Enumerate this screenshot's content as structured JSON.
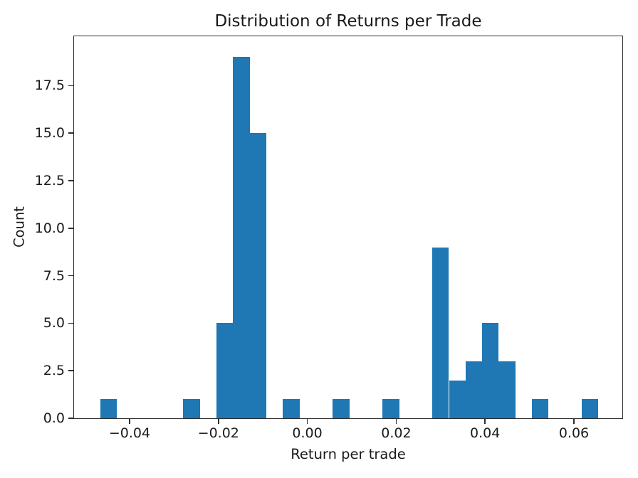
{
  "chart_data": {
    "type": "bar",
    "subtype": "histogram",
    "title": "Distribution of Returns per Trade",
    "xlabel": "Return per trade",
    "ylabel": "Count",
    "bar_color": "#1f77b4",
    "bins": 30,
    "bin_start": -0.0466,
    "bin_width": 0.003737,
    "bin_counts": [
      1,
      0,
      0,
      0,
      0,
      1,
      0,
      5,
      19,
      15,
      0,
      1,
      0,
      0,
      1,
      0,
      0,
      1,
      0,
      0,
      9,
      2,
      3,
      5,
      3,
      0,
      1,
      0,
      0,
      1
    ],
    "xlim": [
      -0.0525,
      0.0709
    ],
    "ylim": [
      0,
      20.1
    ],
    "grid": false,
    "legend_position": "none",
    "x_ticks": [
      {
        "value": -0.04,
        "label": "−0.04"
      },
      {
        "value": -0.02,
        "label": "−0.02"
      },
      {
        "value": 0,
        "label": "0.00"
      },
      {
        "value": 0.02,
        "label": "0.02"
      },
      {
        "value": 0.04,
        "label": "0.04"
      },
      {
        "value": 0.06,
        "label": "0.06"
      }
    ],
    "y_ticks": [
      {
        "value": 0,
        "label": "0.0"
      },
      {
        "value": 2.5,
        "label": "2.5"
      },
      {
        "value": 5,
        "label": "5.0"
      },
      {
        "value": 7.5,
        "label": "7.5"
      },
      {
        "value": 10,
        "label": "10.0"
      },
      {
        "value": 12.5,
        "label": "12.5"
      },
      {
        "value": 15,
        "label": "15.0"
      },
      {
        "value": 17.5,
        "label": "17.5"
      }
    ]
  }
}
